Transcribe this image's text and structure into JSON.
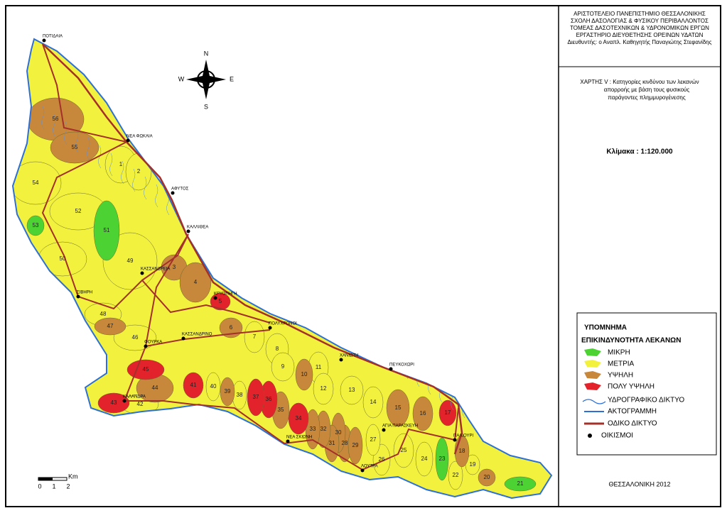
{
  "header": {
    "lines": [
      "ΑΡΙΣΤΟΤΕΛΕΙΟ ΠΑΝΕΠΙΣΤΗΜΙΟ ΘΕΣΣΑΛΟΝΙΚΗΣ",
      "ΣΧΟΛΗ ΔΑΣΟΛΟΓΙΑΣ & ΦΥΣΙΚΟΥ ΠΕΡΙΒΑΛΛΟΝΤΟΣ",
      "ΤΟΜΕΑΣ ΔΑΣΟΤΕΧΝΙΚΩΝ & ΥΔΡΟΝΟΜΙΚΩΝ ΕΡΓΩΝ",
      "ΕΡΓΑΣΤΗΡΙΟ ΔΙΕΥΘΕΤΗΣΗΣ ΟΡΕΙΝΩΝ ΥΔΑΤΩΝ",
      "Διευθυντής: ο Αναπλ. Καθηγητής Παναγιώτης Στεφανίδης"
    ]
  },
  "map_title": {
    "lines": [
      "ΧΑΡΤΗΣ V : Κατηγορίες κινδύνου των λεκανών",
      "απορροής με βάση τους φυσικούς",
      "παράγοντες πλημμυρογένεσης"
    ]
  },
  "scale": "Κλίμακα : 1:120.000",
  "legend": {
    "title": "ΥΠΟΜΝΗΜΑ",
    "subtitle": "ΕΠΙΚΙΝΔΥΝΟΤΗΤΑ ΛΕΚΑΝΩΝ",
    "classes": [
      {
        "label": "ΜΙΚΡΗ",
        "color": "#4cd232"
      },
      {
        "label": "ΜΕΤΡΙΑ",
        "color": "#f2f23e"
      },
      {
        "label": "ΥΨΗΛΗ",
        "color": "#c7883c"
      },
      {
        "label": "ΠΟΛΥ ΥΨΗΛΗ",
        "color": "#e3232b"
      }
    ],
    "layers": [
      "ΥΔΡΟΓΡΑΦΙΚΟ ΔΙΚΤΥΟ",
      "ΑΚΤΟΓΡΑΜΜΗ",
      "ΟΔΙΚΟ ΔΙΚΤΥΟ",
      "ΟΙΚΙΣΜΟΙ"
    ]
  },
  "compass": {
    "n": "N",
    "s": "S",
    "w": "W",
    "e": "E"
  },
  "scale_bar": {
    "unit": "Km",
    "ticks": [
      "0",
      "1",
      "2"
    ]
  },
  "footer": "ΘΕΣΣΑΛΟΝΙΚΗ 2012",
  "settlements": [
    "ΠΟΤΙΔΑΙΑ",
    "ΝΕΑ ΦΩΚΑΙΑ",
    "ΑΦΥΤΟΣ",
    "ΚΑΛΛΙΘΕΑ",
    "ΚΑΣΣΑΝΔΡΕΙΑ",
    "ΣΙΒΗΡΗ",
    "ΚΡΥΟΠΗΓΗ",
    "ΠΟΛΥΧΡΟΝΟΙ",
    "ΧΑΝΙΩΤΗ",
    "ΠΕΥΚΟΧΩΡΙ",
    "ΚΑΣΣΑΝΔΡΙΝΟ",
    "ΦΟΥΡΚΑ",
    "ΚΑΛΑΝΔΡΑ",
    "ΝΕΑ ΣΚΙΩΝΗ",
    "ΑΓΙΑ ΠΑΡΑΣΚΕΥΗ",
    "ΠΑΛΙΟΥΡΙ",
    "ΛΟΥΤΡΑ"
  ],
  "basins": [
    {
      "label": "56",
      "class": 2
    },
    {
      "label": "55",
      "class": 2
    },
    {
      "label": "54",
      "class": 1
    },
    {
      "label": "1",
      "class": 1
    },
    {
      "label": "2",
      "class": 1
    },
    {
      "label": "53",
      "class": 0
    },
    {
      "label": "52",
      "class": 1
    },
    {
      "label": "51",
      "class": 0
    },
    {
      "label": "50",
      "class": 1
    },
    {
      "label": "49",
      "class": 1
    },
    {
      "label": "3",
      "class": 2
    },
    {
      "label": "4",
      "class": 2
    },
    {
      "label": "5",
      "class": 3
    },
    {
      "label": "6",
      "class": 2
    },
    {
      "label": "48",
      "class": 1
    },
    {
      "label": "47",
      "class": 2
    },
    {
      "label": "46",
      "class": 1
    },
    {
      "label": "7",
      "class": 1
    },
    {
      "label": "8",
      "class": 1
    },
    {
      "label": "9",
      "class": 1
    },
    {
      "label": "10",
      "class": 2
    },
    {
      "label": "11",
      "class": 1
    },
    {
      "label": "12",
      "class": 1
    },
    {
      "label": "13",
      "class": 1
    },
    {
      "label": "14",
      "class": 1
    },
    {
      "label": "15",
      "class": 2
    },
    {
      "label": "16",
      "class": 2
    },
    {
      "label": "17",
      "class": 3
    },
    {
      "label": "18",
      "class": 2
    },
    {
      "label": "19",
      "class": 1
    },
    {
      "label": "20",
      "class": 2
    },
    {
      "label": "21",
      "class": 0
    },
    {
      "label": "22",
      "class": 1
    },
    {
      "label": "23",
      "class": 0
    },
    {
      "label": "24",
      "class": 1
    },
    {
      "label": "25",
      "class": 1
    },
    {
      "label": "26",
      "class": 1
    },
    {
      "label": "27",
      "class": 1
    },
    {
      "label": "28",
      "class": 2
    },
    {
      "label": "29",
      "class": 2
    },
    {
      "label": "30",
      "class": 2
    },
    {
      "label": "31",
      "class": 2
    },
    {
      "label": "32",
      "class": 2
    },
    {
      "label": "33",
      "class": 2
    },
    {
      "label": "34",
      "class": 3
    },
    {
      "label": "35",
      "class": 2
    },
    {
      "label": "36",
      "class": 3
    },
    {
      "label": "37",
      "class": 3
    },
    {
      "label": "38",
      "class": 1
    },
    {
      "label": "39",
      "class": 2
    },
    {
      "label": "40",
      "class": 1
    },
    {
      "label": "41",
      "class": 3
    },
    {
      "label": "42",
      "class": 1
    },
    {
      "label": "43",
      "class": 3
    },
    {
      "label": "44",
      "class": 2
    },
    {
      "label": "45",
      "class": 3
    }
  ]
}
